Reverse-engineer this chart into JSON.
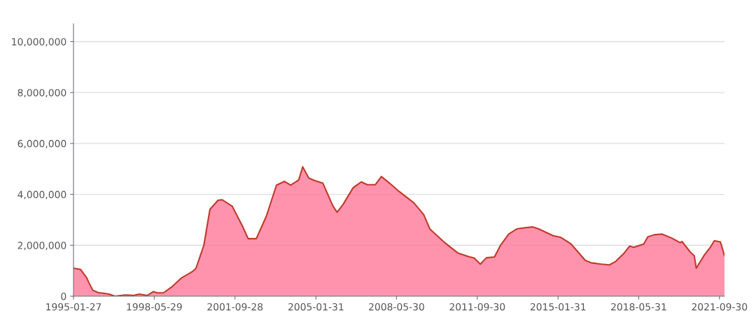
{
  "chart_data": {
    "type": "area",
    "x": [
      "1995-01-27",
      "1995-05",
      "1995-08",
      "1995-09",
      "1995-11",
      "1996-02",
      "1996-03",
      "1996-07",
      "1996-10",
      "1997-03",
      "1997-07",
      "1997-10",
      "1998-02",
      "1998-05",
      "1998-07",
      "1998-10",
      "1999-02",
      "1999-07",
      "1999-12",
      "2000-02",
      "2000-06",
      "2000-09",
      "2001-01",
      "2001-03",
      "2001-08",
      "2002-01",
      "2002-04",
      "2002-08",
      "2003-01",
      "2003-06",
      "2003-10",
      "2004-01",
      "2004-05",
      "2004-07",
      "2004-10",
      "2005-01",
      "2005-05",
      "2005-10",
      "2005-12",
      "2006-03",
      "2006-08",
      "2006-12",
      "2007-03",
      "2007-07",
      "2007-10",
      "2008-02",
      "2008-07",
      "2009-02",
      "2009-07",
      "2009-10",
      "2010-05",
      "2010-12",
      "2011-05",
      "2011-08",
      "2011-11",
      "2012-02",
      "2012-06",
      "2012-09",
      "2013-01",
      "2013-05",
      "2013-09",
      "2014-01",
      "2014-04",
      "2014-11",
      "2015-03",
      "2015-08",
      "2016-03",
      "2016-06",
      "2016-11",
      "2017-03",
      "2017-06",
      "2017-10",
      "2018-01",
      "2018-03",
      "2018-08",
      "2018-10",
      "2019-01",
      "2019-05",
      "2019-10",
      "2020-02",
      "2020-03",
      "2020-07",
      "2020-09",
      "2020-10",
      "2021-02",
      "2021-05",
      "2021-07",
      "2021-10",
      "2021-12"
    ],
    "series": [
      {
        "color": "#c0392b",
        "values": [
          1100000,
          1050000,
          720000,
          540000,
          230000,
          130000,
          130000,
          80000,
          0,
          50000,
          30000,
          80000,
          30000,
          180000,
          130000,
          130000,
          360000,
          720000,
          950000,
          1080000,
          2000000,
          3410000,
          3770000,
          3790000,
          3540000,
          2770000,
          2260000,
          2260000,
          3150000,
          4360000,
          4510000,
          4360000,
          4560000,
          5080000,
          4640000,
          4540000,
          4440000,
          3540000,
          3300000,
          3600000,
          4260000,
          4490000,
          4380000,
          4380000,
          4700000,
          4440000,
          4100000,
          3670000,
          3200000,
          2640000,
          2130000,
          1690000,
          1560000,
          1500000,
          1260000,
          1510000,
          1540000,
          2000000,
          2440000,
          2640000,
          2690000,
          2720000,
          2640000,
          2380000,
          2310000,
          2050000,
          1410000,
          1310000,
          1260000,
          1230000,
          1360000,
          1670000,
          1970000,
          1920000,
          2050000,
          2330000,
          2410000,
          2440000,
          2280000,
          2100000,
          2150000,
          1740000,
          1590000,
          1100000,
          1620000,
          1920000,
          2180000,
          2130000,
          1590000
        ]
      }
    ],
    "xlim": [
      "1995-01-27",
      "2021-12"
    ],
    "xticks": [
      "1995-01-27",
      "1998-05-29",
      "2001-09-28",
      "2005-01-31",
      "2008-05-30",
      "2011-09-30",
      "2015-01-31",
      "2018-05-31",
      "2021-09-30"
    ],
    "ylim": [
      0,
      10700000
    ],
    "yticks": [
      {
        "value": 0,
        "label": "0"
      },
      {
        "value": 2000000,
        "label": "2,000,000"
      },
      {
        "value": 4000000,
        "label": "4,000,000"
      },
      {
        "value": 6000000,
        "label": "6,000,000"
      },
      {
        "value": 8000000,
        "label": "8,000,000"
      },
      {
        "value": 10000000,
        "label": "10,000,000"
      }
    ],
    "grid": "y",
    "legend": false
  }
}
